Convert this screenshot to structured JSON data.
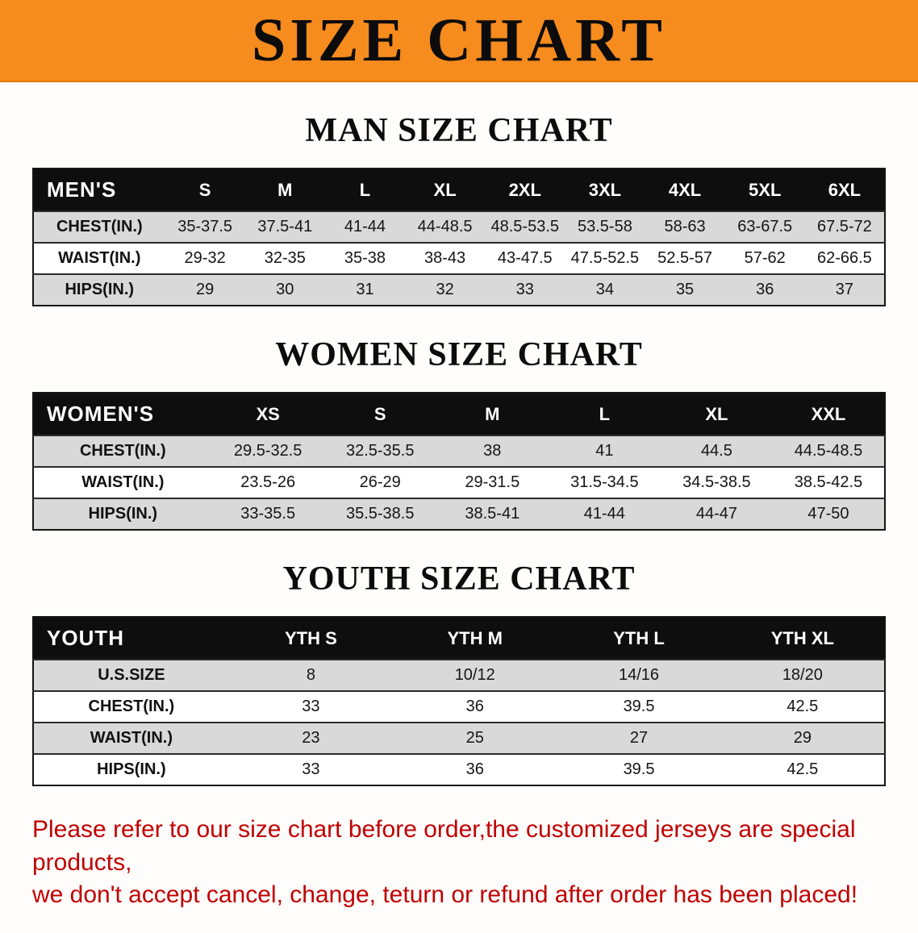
{
  "banner": {
    "title": "SIZE CHART"
  },
  "colors": {
    "banner_bg": "#F68B1E",
    "table_header_bg": "#0E0E0E",
    "row_alt_bg": "#D9D9D9",
    "disclaimer_text": "#C00000"
  },
  "sections": [
    {
      "heading": "MAN SIZE CHART",
      "label": "MEN'S",
      "columns": [
        "S",
        "M",
        "L",
        "XL",
        "2XL",
        "3XL",
        "4XL",
        "5XL",
        "6XL"
      ],
      "rows": [
        {
          "label": "CHEST(IN.)",
          "values": [
            "35-37.5",
            "37.5-41",
            "41-44",
            "44-48.5",
            "48.5-53.5",
            "53.5-58",
            "58-63",
            "63-67.5",
            "67.5-72"
          ]
        },
        {
          "label": "WAIST(IN.)",
          "values": [
            "29-32",
            "32-35",
            "35-38",
            "38-43",
            "43-47.5",
            "47.5-52.5",
            "52.5-57",
            "57-62",
            "62-66.5"
          ]
        },
        {
          "label": "HIPS(IN.)",
          "values": [
            "29",
            "30",
            "31",
            "32",
            "33",
            "34",
            "35",
            "36",
            "37"
          ]
        }
      ]
    },
    {
      "heading": "WOMEN SIZE CHART",
      "label": "WOMEN'S",
      "columns": [
        "XS",
        "S",
        "M",
        "L",
        "XL",
        "XXL"
      ],
      "rows": [
        {
          "label": "CHEST(IN.)",
          "values": [
            "29.5-32.5",
            "32.5-35.5",
            "38",
            "41",
            "44.5",
            "44.5-48.5"
          ]
        },
        {
          "label": "WAIST(IN.)",
          "values": [
            "23.5-26",
            "26-29",
            "29-31.5",
            "31.5-34.5",
            "34.5-38.5",
            "38.5-42.5"
          ]
        },
        {
          "label": "HIPS(IN.)",
          "values": [
            "33-35.5",
            "35.5-38.5",
            "38.5-41",
            "41-44",
            "44-47",
            "47-50"
          ]
        }
      ]
    },
    {
      "heading": "YOUTH SIZE CHART",
      "label": "YOUTH",
      "columns": [
        "YTH S",
        "YTH M",
        "YTH L",
        "YTH XL"
      ],
      "rows": [
        {
          "label": "U.S.SIZE",
          "values": [
            "8",
            "10/12",
            "14/16",
            "18/20"
          ]
        },
        {
          "label": "CHEST(IN.)",
          "values": [
            "33",
            "36",
            "39.5",
            "42.5"
          ]
        },
        {
          "label": "WAIST(IN.)",
          "values": [
            "23",
            "25",
            "27",
            "29"
          ]
        },
        {
          "label": "HIPS(IN.)",
          "values": [
            "33",
            "36",
            "39.5",
            "42.5"
          ]
        }
      ]
    }
  ],
  "disclaimer": {
    "line1": "Please refer to our size chart before order,the customized jerseys are special products,",
    "line2": "we don't accept cancel, change, teturn or refund after order has been placed!"
  }
}
